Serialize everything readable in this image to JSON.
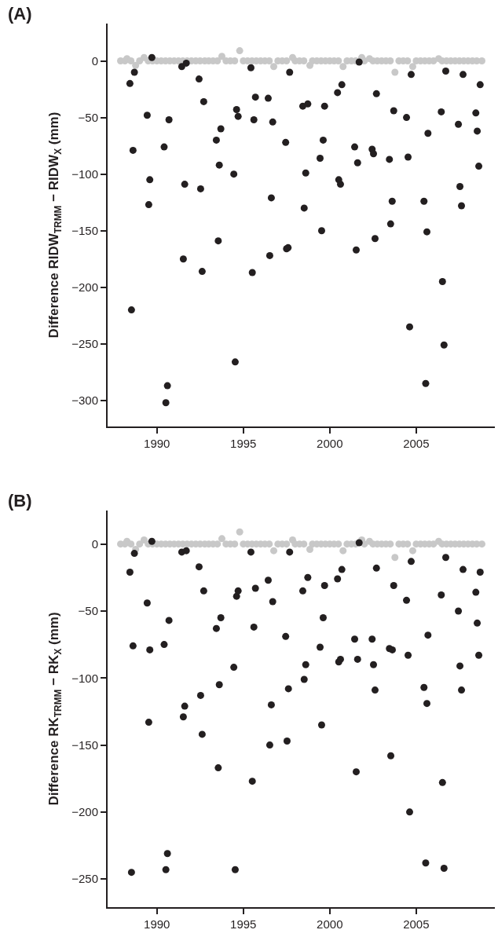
{
  "chart_data": [
    {
      "type": "scatter",
      "title": "(A)",
      "ylabel": "Difference RIDW$_{TRMM}$ − RIDW$_{X}$ (mm)",
      "xlim": [
        1987.15,
        2009.55
      ],
      "xticks": [
        1990,
        1995,
        2000,
        2005
      ],
      "ylim": [
        -323,
        33
      ],
      "yticks": [
        0,
        -50,
        -100,
        -150,
        -200,
        -250,
        -300
      ],
      "marker": "circle",
      "series": [
        {
          "color": "#c8c8c8",
          "x": [
            1987.9,
            1988.15,
            1988.27,
            1988.5,
            1988.77,
            1989.0,
            1989.26,
            1989.5,
            1989.75,
            1990.0,
            1990.25,
            1990.5,
            1990.75,
            1991.0,
            1991.25,
            1991.5,
            1991.75,
            1992.0,
            1992.25,
            1992.5,
            1992.77,
            1993.0,
            1993.25,
            1993.5,
            1993.76,
            1994.0,
            1994.25,
            1994.5,
            1994.79,
            1995.0,
            1995.25,
            1995.5,
            1995.75,
            1996.0,
            1996.25,
            1996.5,
            1996.76,
            1997.0,
            1997.25,
            1997.5,
            1997.85,
            1998.0,
            1998.25,
            1998.5,
            1998.85,
            1999.0,
            1999.25,
            1999.5,
            1999.75,
            2000.0,
            2000.25,
            2000.5,
            2000.77,
            2001.0,
            2001.25,
            2001.5,
            2001.85,
            2002.0,
            2002.3,
            2002.5,
            2002.75,
            2003.0,
            2003.25,
            2003.5,
            2003.77,
            2004.0,
            2004.25,
            2004.5,
            2004.8,
            2005.0,
            2005.25,
            2005.5,
            2005.75,
            2006.0,
            2006.3,
            2006.5,
            2006.75,
            2007.0,
            2007.25,
            2007.5,
            2007.75,
            2008.0,
            2008.25,
            2008.5,
            2008.8
          ],
          "values": [
            0,
            0,
            2,
            0,
            -4,
            0,
            3,
            0,
            0,
            0,
            0,
            0,
            0,
            0,
            0,
            0,
            0,
            0,
            0,
            0,
            0,
            0,
            0,
            0,
            4,
            0,
            0,
            0,
            9,
            0,
            0,
            0,
            0,
            0,
            0,
            0,
            -5,
            0,
            0,
            0,
            3,
            0,
            0,
            0,
            -4,
            0,
            0,
            0,
            0,
            0,
            0,
            0,
            -5,
            0,
            0,
            0,
            3,
            0,
            2,
            0,
            0,
            0,
            0,
            0,
            -10,
            0,
            0,
            0,
            -5,
            0,
            0,
            0,
            0,
            0,
            2,
            0,
            0,
            0,
            0,
            0,
            0,
            0,
            0,
            0,
            0
          ]
        },
        {
          "color": "#231f20",
          "x": [
            1989.71,
            1988.7,
            1988.44,
            1991.44,
            1991.7,
            1992.44,
            1995.44,
            1997.68,
            2001.7,
            2004.71,
            2006.71,
            2007.71,
            2008.7,
            2000.7,
            2000.45,
            2002.7,
            1992.71,
            1995.7,
            1996.44,
            1998.44,
            1998.73,
            1999.7,
            1994.61,
            1994.7,
            1989.44,
            1990.7,
            1995.61,
            1996.7,
            2003.7,
            2004.44,
            2006.45,
            2008.45,
            2007.44,
            2005.68,
            2008.53,
            1993.7,
            1993.44,
            1997.45,
            1999.62,
            1988.62,
            1990.42,
            2001.44,
            2002.45,
            2002.53,
            2003.45,
            2004.53,
            1999.44,
            2001.61,
            1993.61,
            1994.45,
            1998.61,
            2008.62,
            1989.59,
            1991.61,
            1992.53,
            2000.52,
            2000.62,
            2007.53,
            1996.62,
            2003.61,
            2005.45,
            2007.62,
            1989.53,
            1998.52,
            2003.52,
            1999.53,
            2005.62,
            1993.55,
            2002.62,
            2001.53,
            1997.5,
            1997.59,
            1996.53,
            1991.53,
            1992.62,
            1995.52,
            1988.53,
            2006.52,
            2004.62,
            2006.61,
            1994.53,
            1990.61,
            1990.52,
            2005.55
          ],
          "values": [
            3,
            -10,
            -20,
            -5,
            -2,
            -16,
            -6,
            -10,
            -1,
            -12,
            -9,
            -12,
            -21,
            -21,
            -28,
            -29,
            -36,
            -32,
            -33,
            -40,
            -38,
            -40,
            -43,
            -49,
            -48,
            -52,
            -52,
            -54,
            -44,
            -50,
            -45,
            -46,
            -56,
            -64,
            -62,
            -60,
            -70,
            -72,
            -70,
            -79,
            -76,
            -76,
            -78,
            -82,
            -87,
            -85,
            -86,
            -90,
            -92,
            -100,
            -99,
            -93,
            -105,
            -109,
            -113,
            -105,
            -109,
            -111,
            -121,
            -124,
            -124,
            -128,
            -127,
            -130,
            -144,
            -150,
            -151,
            -159,
            -157,
            -167,
            -166,
            -165,
            -172,
            -175,
            -186,
            -187,
            -220,
            -195,
            -235,
            -251,
            -266,
            -287,
            -302,
            -285
          ]
        }
      ]
    },
    {
      "type": "scatter",
      "title": "(B)",
      "ylabel": "Difference RK$_{TRMM}$ − RK$_{X}$ (mm)",
      "xlim": [
        1987.15,
        2009.55
      ],
      "xticks": [
        1990,
        1995,
        2000,
        2005
      ],
      "ylim": [
        -271,
        25
      ],
      "yticks": [
        0,
        -50,
        -100,
        -150,
        -200,
        -250
      ],
      "marker": "circle",
      "series": [
        {
          "color": "#c8c8c8",
          "x": [
            1987.9,
            1988.15,
            1988.27,
            1988.5,
            1988.77,
            1989.0,
            1989.26,
            1989.5,
            1989.75,
            1990.0,
            1990.25,
            1990.5,
            1990.75,
            1991.0,
            1991.25,
            1991.5,
            1991.75,
            1992.0,
            1992.25,
            1992.5,
            1992.77,
            1993.0,
            1993.25,
            1993.5,
            1993.76,
            1994.0,
            1994.25,
            1994.5,
            1994.79,
            1995.0,
            1995.25,
            1995.5,
            1995.75,
            1996.0,
            1996.25,
            1996.5,
            1996.76,
            1997.0,
            1997.25,
            1997.5,
            1997.85,
            1998.0,
            1998.25,
            1998.5,
            1998.85,
            1999.0,
            1999.25,
            1999.5,
            1999.75,
            2000.0,
            2000.25,
            2000.5,
            2000.77,
            2001.0,
            2001.25,
            2001.5,
            2001.85,
            2002.0,
            2002.3,
            2002.5,
            2002.75,
            2003.0,
            2003.25,
            2003.5,
            2003.77,
            2004.0,
            2004.25,
            2004.5,
            2004.8,
            2005.0,
            2005.25,
            2005.5,
            2005.75,
            2006.0,
            2006.3,
            2006.5,
            2006.75,
            2007.0,
            2007.25,
            2007.5,
            2007.75,
            2008.0,
            2008.25,
            2008.5,
            2008.8
          ],
          "values": [
            0,
            0,
            2,
            0,
            -4,
            0,
            3,
            0,
            0,
            0,
            0,
            0,
            0,
            0,
            0,
            0,
            0,
            0,
            0,
            0,
            0,
            0,
            0,
            0,
            4,
            0,
            0,
            0,
            9,
            0,
            0,
            0,
            0,
            0,
            0,
            0,
            -5,
            0,
            0,
            0,
            3,
            0,
            0,
            0,
            -4,
            0,
            0,
            0,
            0,
            0,
            0,
            0,
            -5,
            0,
            0,
            0,
            3,
            0,
            2,
            0,
            0,
            0,
            0,
            0,
            -10,
            0,
            0,
            0,
            -5,
            0,
            0,
            0,
            0,
            0,
            2,
            0,
            0,
            0,
            0,
            0,
            0,
            0,
            0,
            0,
            0
          ]
        },
        {
          "color": "#231f20",
          "x": [
            1989.71,
            1988.7,
            1988.44,
            1991.44,
            1991.7,
            1992.44,
            1995.44,
            1997.68,
            2001.7,
            2004.71,
            2006.71,
            2007.71,
            2008.7,
            2000.7,
            2000.45,
            2002.7,
            1992.71,
            1994.61,
            1994.7,
            1995.7,
            1996.44,
            1996.7,
            1998.44,
            1998.73,
            1999.7,
            2003.7,
            2004.44,
            2006.45,
            2008.45,
            2007.44,
            2008.53,
            2005.68,
            1989.44,
            1990.7,
            1993.7,
            1993.44,
            1995.61,
            1999.62,
            1997.45,
            1988.62,
            1989.59,
            1990.42,
            2001.44,
            2002.45,
            2003.45,
            2003.62,
            2004.53,
            1999.44,
            2001.61,
            2000.52,
            2000.62,
            2002.53,
            2008.62,
            1998.61,
            2007.53,
            1994.45,
            1998.52,
            1993.61,
            2005.45,
            1997.61,
            2002.62,
            2007.62,
            1992.53,
            2005.62,
            1996.62,
            1991.61,
            1991.53,
            1989.53,
            1999.53,
            1992.62,
            1996.53,
            1997.53,
            1993.55,
            1995.52,
            2001.53,
            2003.53,
            2006.52,
            2004.62,
            1990.61,
            1990.52,
            1988.53,
            1994.53,
            2005.55,
            2006.61
          ],
          "values": [
            2,
            -7,
            -21,
            -6,
            -5,
            -17,
            -6,
            -6,
            1,
            -13,
            -10,
            -19,
            -21,
            -19,
            -26,
            -18,
            -35,
            -39,
            -35,
            -33,
            -27,
            -43,
            -35,
            -25,
            -31,
            -31,
            -42,
            -38,
            -36,
            -50,
            -59,
            -68,
            -44,
            -57,
            -55,
            -63,
            -62,
            -55,
            -69,
            -76,
            -79,
            -75,
            -71,
            -71,
            -78,
            -79,
            -83,
            -77,
            -86,
            -88,
            -86,
            -90,
            -83,
            -90,
            -91,
            -92,
            -101,
            -105,
            -107,
            -108,
            -109,
            -109,
            -113,
            -119,
            -120,
            -121,
            -129,
            -133,
            -135,
            -142,
            -150,
            -147,
            -167,
            -177,
            -170,
            -158,
            -178,
            -200,
            -231,
            -243,
            -245,
            -243,
            -238,
            -242
          ]
        }
      ]
    }
  ]
}
